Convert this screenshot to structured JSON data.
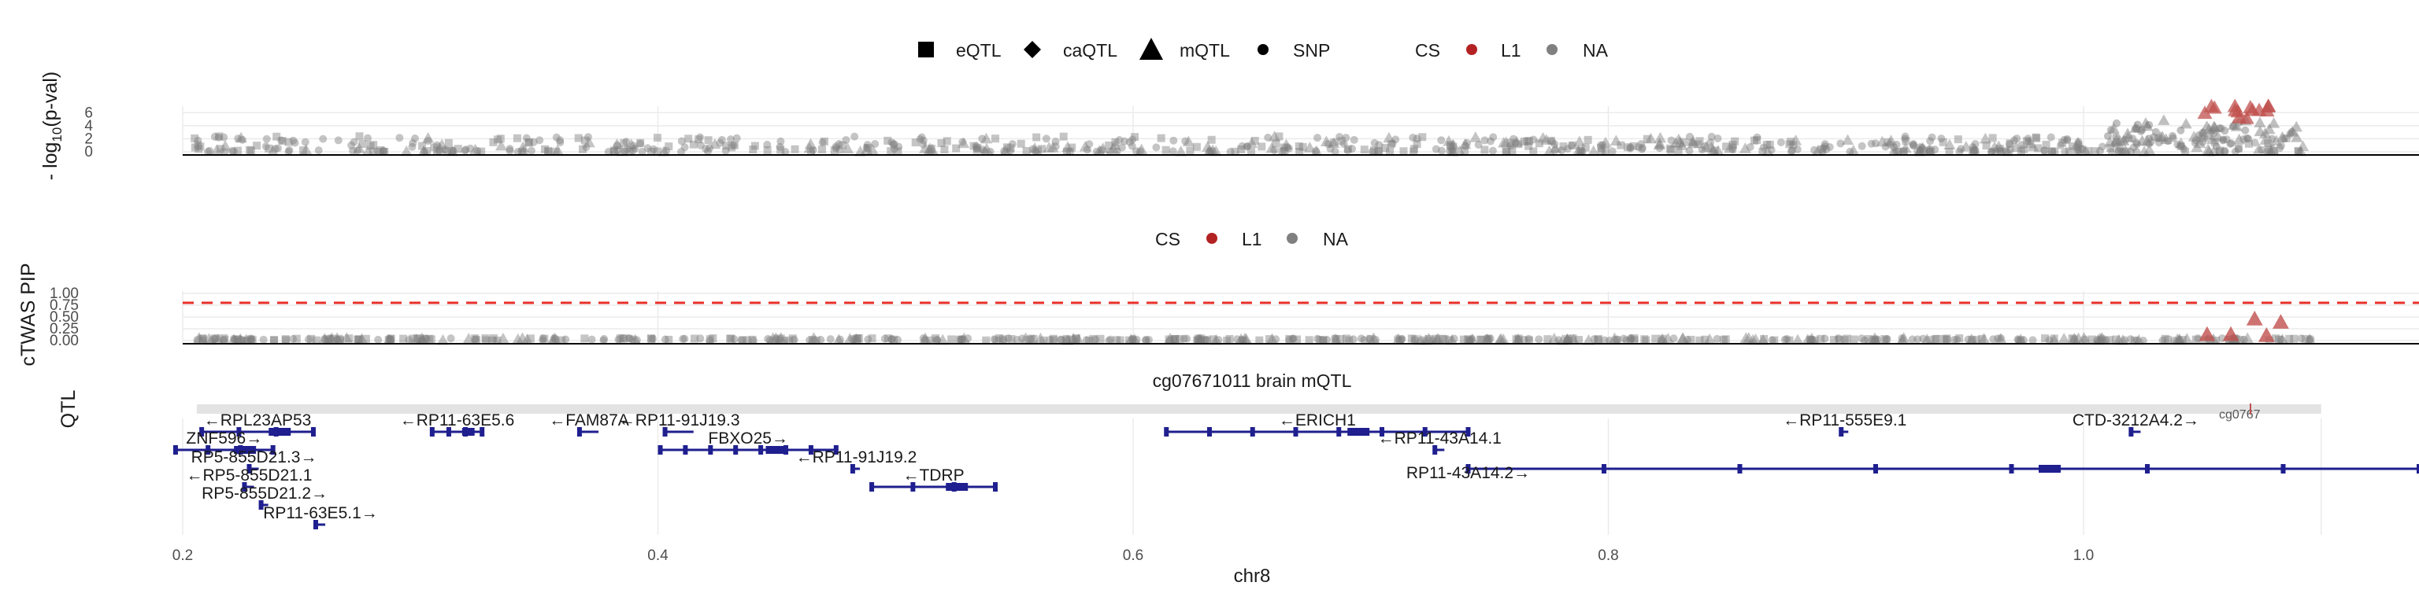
{
  "legend_top": {
    "shapes": [
      {
        "shape": "square",
        "label": "eQTL"
      },
      {
        "shape": "diamond",
        "label": "caQTL"
      },
      {
        "shape": "triangle",
        "label": "mQTL"
      },
      {
        "shape": "circle",
        "label": "SNP"
      }
    ],
    "cs_title": "CS",
    "cs_items": [
      {
        "label": "L1",
        "color": "#b22222"
      },
      {
        "label": "NA",
        "color": "#808080"
      }
    ]
  },
  "legend_mid": {
    "cs_title": "CS",
    "cs_items": [
      {
        "label": "L1",
        "color": "#b22222"
      },
      {
        "label": "NA",
        "color": "#808080"
      }
    ]
  },
  "colors": {
    "na": "#7f7f7f",
    "l1": "#c0504d",
    "threshold": "#e8302a",
    "gene": "#1f1f8f",
    "grid": "#ebebeb",
    "strip": "#e3e3e3"
  },
  "chart_data": [
    {
      "type": "scatter",
      "panel": "gwas",
      "ylabel_prefix": "- log",
      "ylabel_sub": "10",
      "ylabel_suffix": "(p-val)",
      "ylim": [
        0,
        7
      ],
      "yticks": [
        "0",
        "2",
        "4",
        "6"
      ],
      "xlim": [
        0.2,
        1.1
      ],
      "xaxis_shared": true,
      "background_points_y_range": [
        0,
        2.5
      ],
      "highlight": {
        "x_range": [
          1.05,
          1.08
        ],
        "y_range": [
          5,
          7
        ],
        "shape": "triangle",
        "cs": "L1"
      }
    },
    {
      "type": "scatter",
      "panel": "ctwas",
      "ylabel": "cTWAS PIP",
      "ylim": [
        0,
        1
      ],
      "yticks": [
        "0.00",
        "0.25",
        "0.50",
        "0.75",
        "1.00"
      ],
      "threshold": 0.8,
      "xaxis_shared": true,
      "highlight_points": [
        {
          "x": 1.052,
          "y": 0.12,
          "shape": "triangle"
        },
        {
          "x": 1.062,
          "y": 0.12,
          "shape": "triangle"
        },
        {
          "x": 1.072,
          "y": 0.45,
          "shape": "triangle"
        },
        {
          "x": 1.077,
          "y": 0.1,
          "shape": "triangle"
        },
        {
          "x": 1.083,
          "y": 0.38,
          "shape": "triangle"
        }
      ]
    },
    {
      "type": "line",
      "panel": "qtl",
      "strip_title": "cg07671011 brain mQTL",
      "ylabel": "QTL",
      "clipped_label": "cg0767",
      "xlim": [
        0.2,
        1.1
      ]
    },
    {
      "type": "line",
      "panel": "genes",
      "xlabel": "chr8",
      "xlim": [
        0.15,
        1.15
      ],
      "xticks": [
        "0.2",
        "0.4",
        "0.6",
        "0.8",
        "1.0"
      ],
      "genes": [
        {
          "name": "RPL23AP53",
          "strand": "-",
          "start": 0.208,
          "end": 0.255,
          "row": 0
        },
        {
          "name": "ZNF596",
          "strand": "+",
          "start": 0.197,
          "end": 0.238,
          "row": 1
        },
        {
          "name": "RP5-855D21.3",
          "strand": "+",
          "start": 0.228,
          "end": 0.232,
          "row": 2
        },
        {
          "name": "RP5-855D21.1",
          "strand": "-",
          "start": 0.226,
          "end": 0.23,
          "row": 3
        },
        {
          "name": "RP5-855D21.2",
          "strand": "+",
          "start": 0.233,
          "end": 0.236,
          "row": 4
        },
        {
          "name": "RP11-63E5.1",
          "strand": "+",
          "start": 0.256,
          "end": 0.26,
          "row": 5
        },
        {
          "name": "RP11-63E5.6",
          "strand": "-",
          "start": 0.305,
          "end": 0.326,
          "row": 0
        },
        {
          "name": "FAM87A",
          "strand": "-",
          "start": 0.367,
          "end": 0.375,
          "row": 0
        },
        {
          "name": "RP11-91J19.3",
          "strand": "-",
          "start": 0.403,
          "end": 0.415,
          "row": 0
        },
        {
          "name": "FBXO25",
          "strand": "+",
          "start": 0.401,
          "end": 0.475,
          "row": 1
        },
        {
          "name": "RP11-91J19.2",
          "strand": "-",
          "start": 0.482,
          "end": 0.485,
          "row": 2
        },
        {
          "name": "TDRP",
          "strand": "-",
          "start": 0.49,
          "end": 0.542,
          "row": 3
        },
        {
          "name": "ERICH1",
          "strand": "-",
          "start": 0.614,
          "end": 0.741,
          "row": 0
        },
        {
          "name": "RP11-43A14.1",
          "strand": "-",
          "start": 0.727,
          "end": 0.731,
          "row": 1
        },
        {
          "name": "RP11-43A14.2",
          "strand": "+",
          "start": 0.741,
          "end": 1.15,
          "row": 2
        },
        {
          "name": "RP11-555E9.1",
          "strand": "-",
          "start": 0.898,
          "end": 0.901,
          "row": 0
        },
        {
          "name": "CTD-3212A4.2",
          "strand": "+",
          "start": 1.02,
          "end": 1.024,
          "row": 0
        }
      ]
    }
  ]
}
